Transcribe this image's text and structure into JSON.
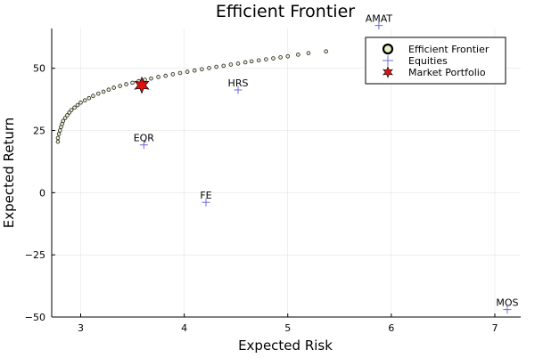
{
  "chart_data": {
    "type": "scatter",
    "title": "Efficient Frontier",
    "xlabel": "Expected Risk",
    "ylabel": "Expected Return",
    "xlim": [
      2.72,
      7.25
    ],
    "ylim": [
      -50,
      66
    ],
    "x_ticks": [
      3,
      4,
      5,
      6,
      7
    ],
    "y_ticks": [
      -50,
      -25,
      0,
      25,
      50
    ],
    "grid": true,
    "legend_position": "top-right",
    "series": [
      {
        "name": "Efficient Frontier",
        "marker": "circle",
        "color": "#e8f0c8",
        "x": [
          2.78,
          2.78,
          2.79,
          2.8,
          2.81,
          2.82,
          2.83,
          2.85,
          2.87,
          2.89,
          2.91,
          2.94,
          2.97,
          3.0,
          3.04,
          3.08,
          3.12,
          3.17,
          3.22,
          3.27,
          3.32,
          3.38,
          3.44,
          3.5,
          3.56,
          3.62,
          3.68,
          3.75,
          3.82,
          3.89,
          3.96,
          4.03,
          4.1,
          4.17,
          4.24,
          4.31,
          4.38,
          4.45,
          4.52,
          4.59,
          4.65,
          4.72,
          4.79,
          4.86,
          4.93,
          5.0,
          5.1,
          5.2,
          5.37
        ],
        "y": [
          20.5,
          22.0,
          23.6,
          25.0,
          26.4,
          27.6,
          28.8,
          30.0,
          31.1,
          32.2,
          33.2,
          34.2,
          35.2,
          36.2,
          37.1,
          38.0,
          38.9,
          39.8,
          40.6,
          41.4,
          42.2,
          42.9,
          43.6,
          44.2,
          44.8,
          45.4,
          45.9,
          46.5,
          47.0,
          47.6,
          48.1,
          48.6,
          49.1,
          49.6,
          50.1,
          50.6,
          51.0,
          51.5,
          51.9,
          52.4,
          52.8,
          53.2,
          53.6,
          54.0,
          54.4,
          54.8,
          55.5,
          56.1,
          56.8
        ]
      },
      {
        "name": "Equities",
        "marker": "cross",
        "color": "#6b6bdc",
        "labels": [
          "AMAT",
          "HRS",
          "EQR",
          "FE",
          "MOS"
        ],
        "x": [
          5.88,
          4.52,
          3.61,
          4.21,
          7.12
        ],
        "y": [
          67.2,
          41.3,
          19.2,
          -3.9,
          -47.0
        ]
      },
      {
        "name": "Market Portfolio",
        "marker": "star",
        "color": "#e01010",
        "x": [
          3.59
        ],
        "y": [
          43.2
        ]
      }
    ]
  }
}
